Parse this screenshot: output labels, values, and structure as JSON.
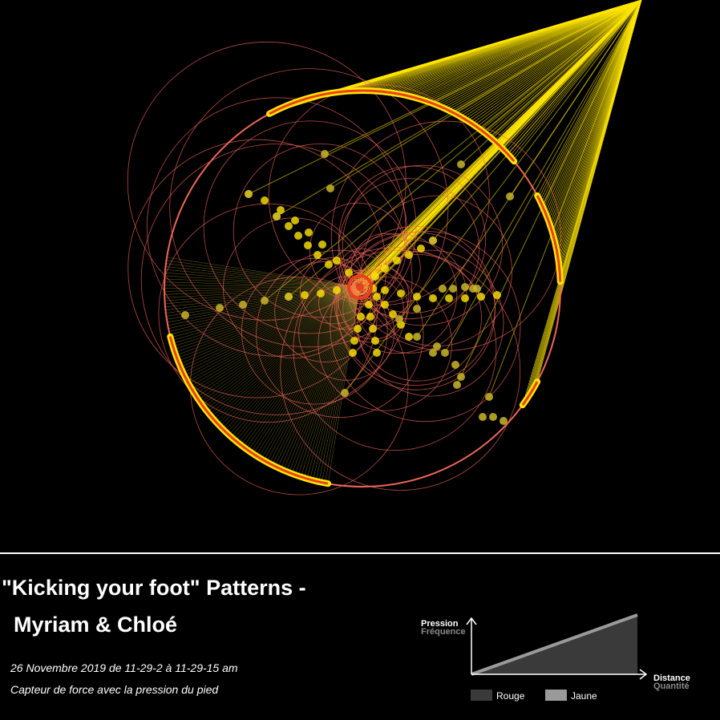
{
  "title": {
    "line1": "\"Kicking your foot\" Patterns -",
    "line2": "Myriam & Chloé"
  },
  "subtitle": {
    "date": "26 Novembre 2019 de 11-29-2 à 11-29-15 am",
    "description": "Capteur de force avec la pression du pied"
  },
  "legend": {
    "y_label_primary": "Pression",
    "y_label_secondary": "Fréquence",
    "x_label_primary": "Distance",
    "x_label_secondary": "Quantité",
    "items": [
      {
        "label": "Rouge",
        "color": "#3a3a3a"
      },
      {
        "label": "Jaune",
        "color": "#9a9a9a"
      }
    ]
  },
  "colors": {
    "background": "#000000",
    "ray": "#ffe600",
    "ring": "#f0665a",
    "ring_highlight": "#e8401e",
    "dot": "#c9b52a"
  }
}
